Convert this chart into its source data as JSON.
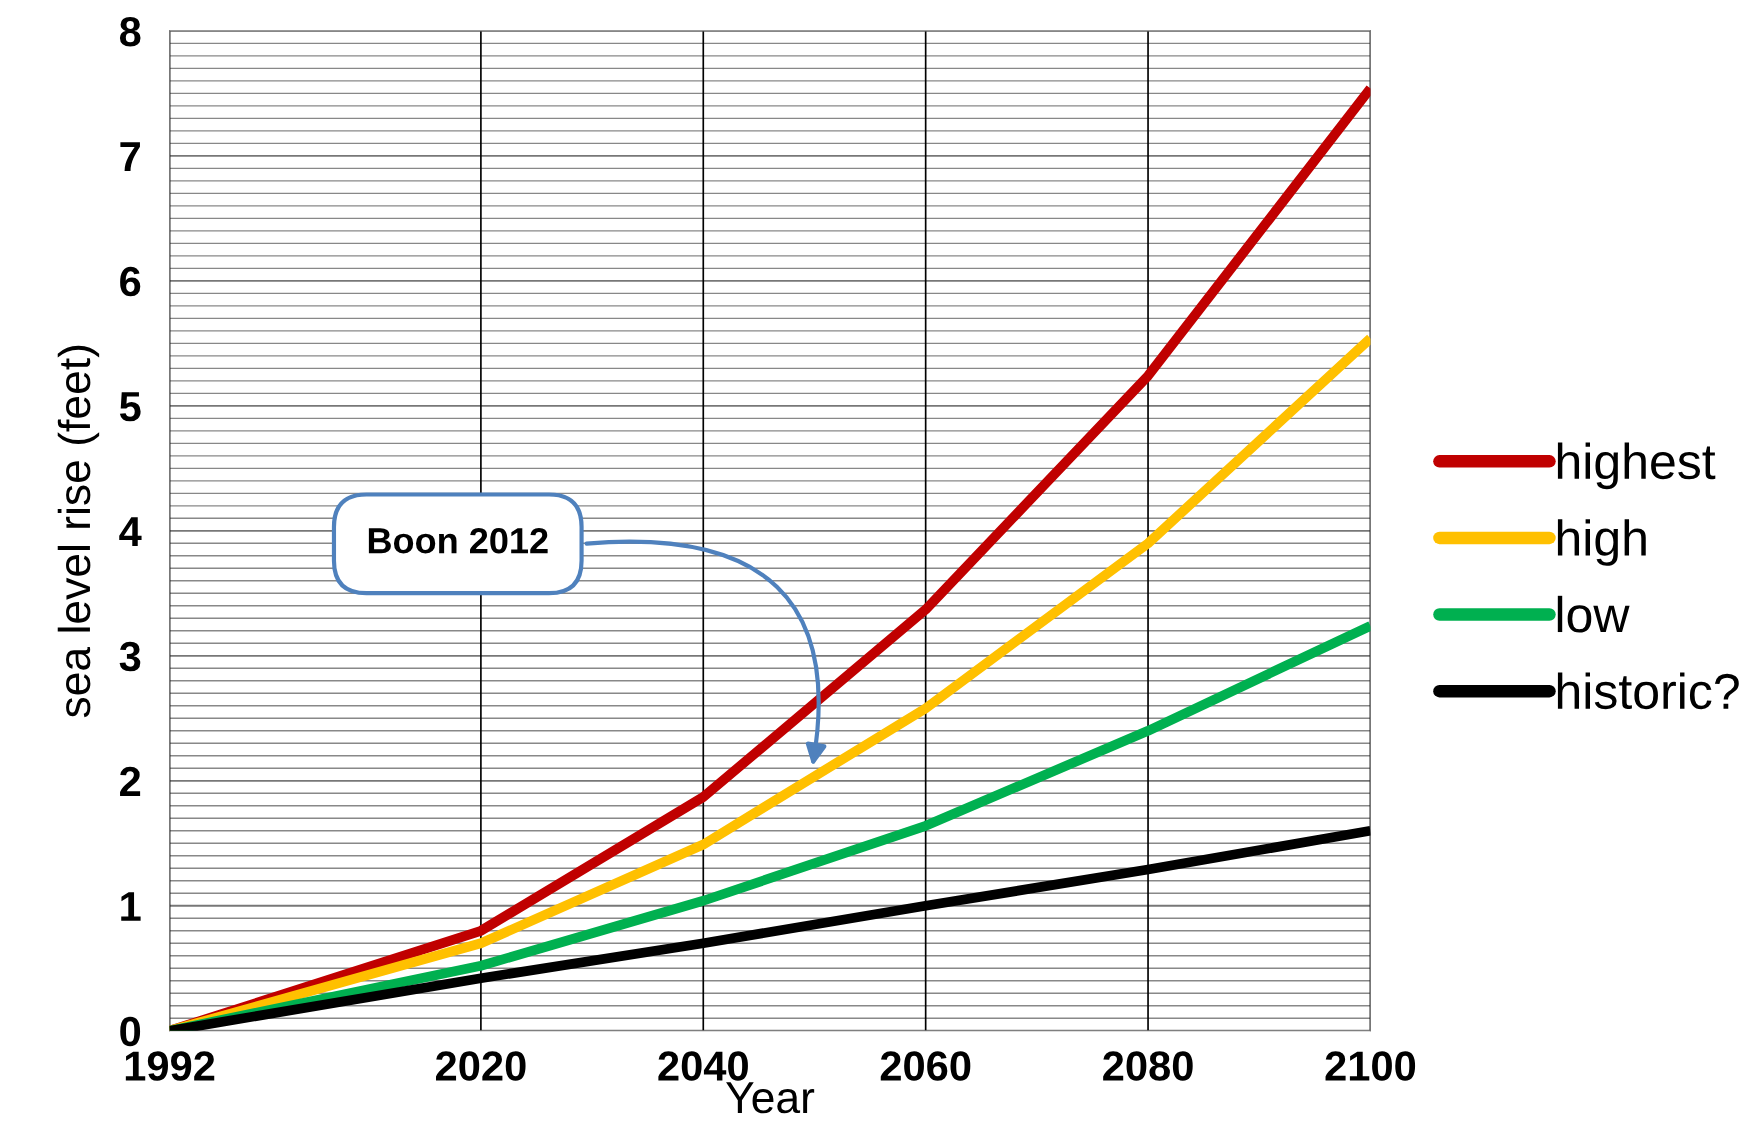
{
  "chart_data": {
    "type": "line",
    "xlabel": "Year",
    "ylabel": "sea level rise (feet)",
    "x": [
      1992,
      2020,
      2040,
      2060,
      2080,
      2100
    ],
    "series": [
      {
        "name": "highest",
        "color": "#c00000",
        "values": [
          0,
          0.8,
          1.87,
          3.37,
          5.24,
          7.54
        ]
      },
      {
        "name": "high",
        "color": "#ffc000",
        "values": [
          0,
          0.7,
          1.49,
          2.58,
          3.9,
          5.54
        ]
      },
      {
        "name": "low",
        "color": "#00b050",
        "values": [
          0,
          0.52,
          1.04,
          1.64,
          2.4,
          3.24
        ]
      },
      {
        "name": "historic?",
        "color": "#000000",
        "values": [
          0,
          0.42,
          0.7,
          1.0,
          1.29,
          1.6
        ]
      }
    ],
    "xlim": [
      1992,
      2100
    ],
    "xticks": [
      1992,
      2020,
      2040,
      2060,
      2080,
      2100
    ],
    "ylim": [
      0,
      8
    ],
    "yticks": [
      0,
      {
        "value": 0.1,
        "label": null
      },
      {
        "value": 0.2,
        "label": null
      },
      {
        "value": 0.3,
        "label": null
      },
      {
        "value": 0.4,
        "label": null
      },
      {
        "value": 0.5,
        "label": null
      },
      {
        "value": 0.6,
        "label": null
      },
      {
        "value": 0.7,
        "label": null
      },
      {
        "value": 0.8,
        "label": null
      },
      {
        "value": 0.9,
        "label": null
      },
      1,
      {
        "value": 1.1,
        "label": null
      },
      {
        "value": 1.2,
        "label": null
      },
      {
        "value": 1.3,
        "label": null
      },
      {
        "value": 1.4,
        "label": null
      },
      {
        "value": 1.5,
        "label": null
      },
      {
        "value": 1.6,
        "label": null
      },
      {
        "value": 1.7,
        "label": null
      },
      {
        "value": 1.8,
        "label": null
      },
      {
        "value": 1.9,
        "label": null
      },
      2,
      {
        "value": 2.1,
        "label": null
      },
      {
        "value": 2.2,
        "label": null
      },
      {
        "value": 2.3,
        "label": null
      },
      {
        "value": 2.4,
        "label": null
      },
      {
        "value": 2.5,
        "label": null
      },
      {
        "value": 2.6,
        "label": null
      },
      {
        "value": 2.7,
        "label": null
      },
      {
        "value": 2.8,
        "label": null
      },
      {
        "value": 2.9,
        "label": null
      },
      3,
      {
        "value": 3.1,
        "label": null
      },
      {
        "value": 3.2,
        "label": null
      },
      {
        "value": 3.3,
        "label": null
      },
      {
        "value": 3.4,
        "label": null
      },
      {
        "value": 3.5,
        "label": null
      },
      {
        "value": 3.6,
        "label": null
      },
      {
        "value": 3.7,
        "label": null
      },
      {
        "value": 3.8,
        "label": null
      },
      {
        "value": 3.9,
        "label": null
      },
      4,
      {
        "value": 4.1,
        "label": null
      },
      {
        "value": 4.2,
        "label": null
      },
      {
        "value": 4.3,
        "label": null
      },
      {
        "value": 4.4,
        "label": null
      },
      {
        "value": 4.5,
        "label": null
      },
      {
        "value": 4.6,
        "label": null
      },
      {
        "value": 4.7,
        "label": null
      },
      {
        "value": 4.8,
        "label": null
      },
      {
        "value": 4.9,
        "label": null
      },
      5,
      {
        "value": 5.1,
        "label": null
      },
      {
        "value": 5.2,
        "label": null
      },
      {
        "value": 5.3,
        "label": null
      },
      {
        "value": 5.4,
        "label": null
      },
      {
        "value": 5.5,
        "label": null
      },
      {
        "value": 5.6,
        "label": null
      },
      {
        "value": 5.7,
        "label": null
      },
      {
        "value": 5.8,
        "label": null
      },
      {
        "value": 5.9,
        "label": null
      },
      6,
      {
        "value": 6.1,
        "label": null
      },
      {
        "value": 6.2,
        "label": null
      },
      {
        "value": 6.3,
        "label": null
      },
      {
        "value": 6.4,
        "label": null
      },
      {
        "value": 6.5,
        "label": null
      },
      {
        "value": 6.6,
        "label": null
      },
      {
        "value": 6.7,
        "label": null
      },
      {
        "value": 6.8,
        "label": null
      },
      {
        "value": 6.9,
        "label": null
      },
      7,
      {
        "value": 7.1,
        "label": null
      },
      {
        "value": 7.2,
        "label": null
      },
      {
        "value": 7.3,
        "label": null
      },
      {
        "value": 7.4,
        "label": null
      },
      {
        "value": 7.5,
        "label": null
      },
      {
        "value": 7.6,
        "label": null
      },
      {
        "value": 7.7,
        "label": null
      },
      {
        "value": 7.8,
        "label": null
      },
      {
        "value": 7.9,
        "label": null
      },
      8
    ],
    "grid": true,
    "legend": "right",
    "marker": "none",
    "line_style": "solid",
    "annotations": [
      "Boon 2012"
    ]
  }
}
